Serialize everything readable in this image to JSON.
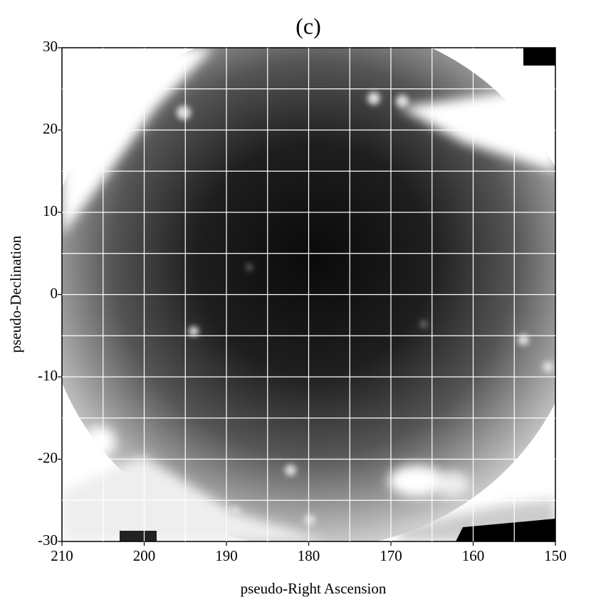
{
  "chart_data": {
    "type": "image",
    "title": "(c)",
    "xlabel": "pseudo-Right Ascension",
    "ylabel": "pseudo-Declination",
    "xlim": [
      210,
      150
    ],
    "xticks": [
      210,
      200,
      190,
      180,
      170,
      160,
      150
    ],
    "ylim": [
      -30,
      30
    ],
    "yticks": [
      -30,
      -20,
      -10,
      0,
      10,
      20,
      30
    ],
    "grid": {
      "x": [
        205,
        200,
        195,
        190,
        185,
        180,
        175,
        170,
        165,
        160,
        155
      ],
      "y": [
        -25,
        -20,
        -15,
        -10,
        -5,
        0,
        5,
        10,
        15,
        20,
        25
      ]
    },
    "grid_color": "#ffffff"
  }
}
